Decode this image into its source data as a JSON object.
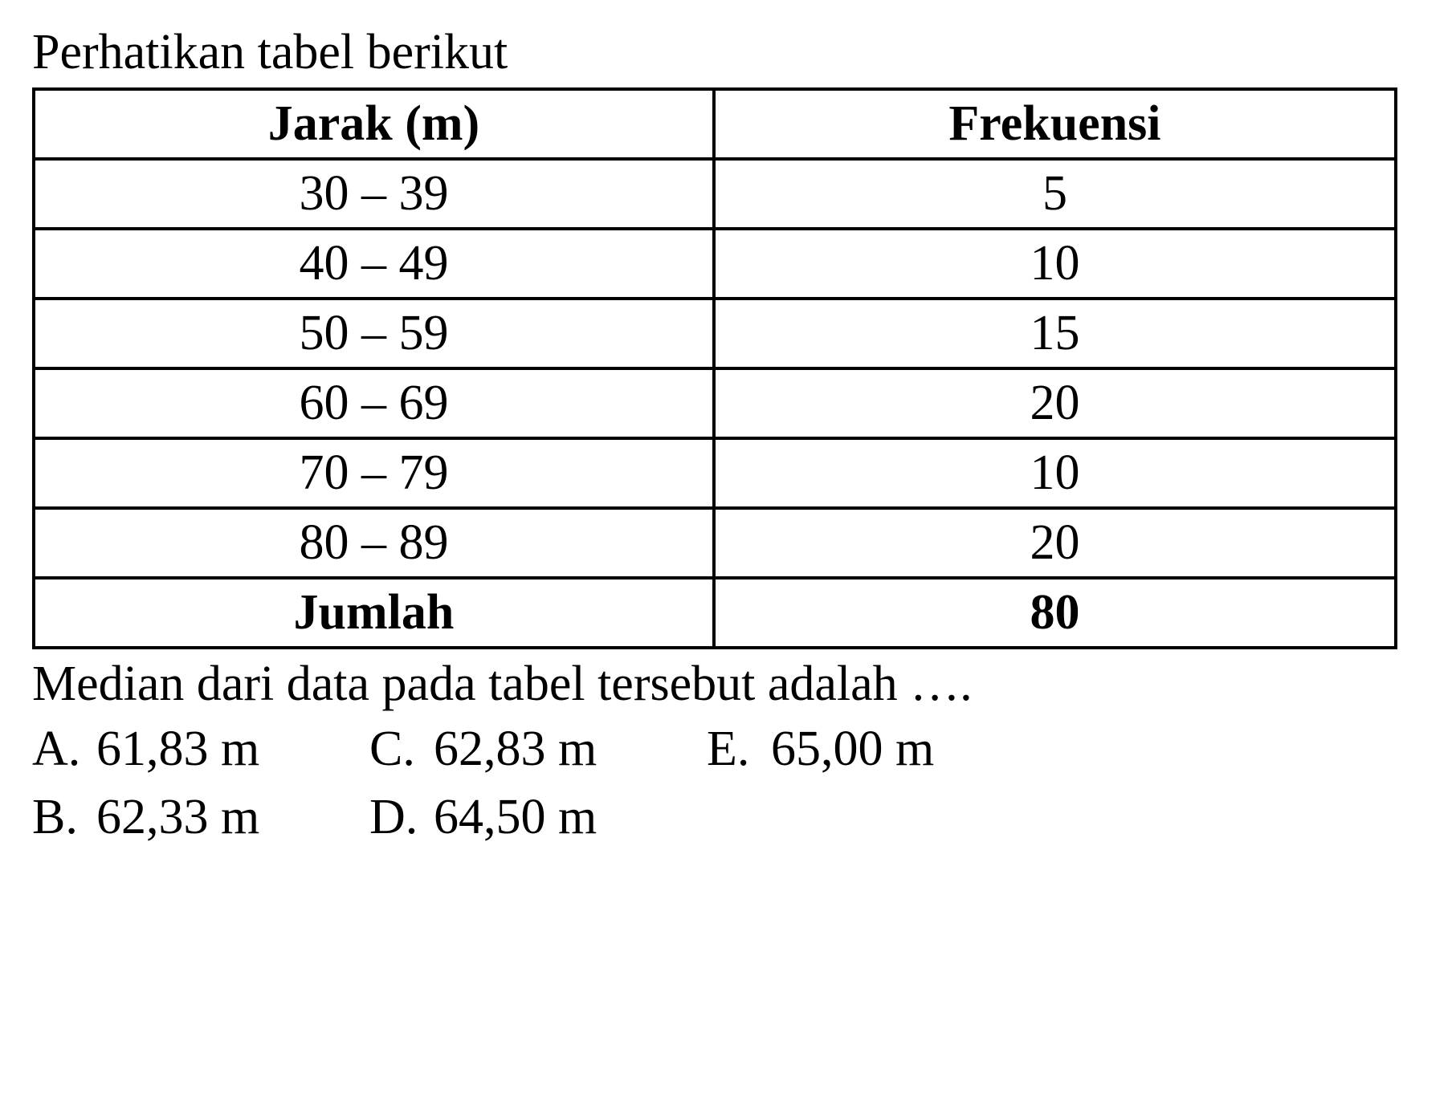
{
  "intro": "Perhatikan tabel berikut",
  "table": {
    "headers": {
      "col1": "Jarak (m)",
      "col2": "Frekuensi"
    },
    "rows": [
      {
        "range": "30 – 39",
        "freq": "5"
      },
      {
        "range": "40 – 49",
        "freq": "10"
      },
      {
        "range": "50 – 59",
        "freq": "15"
      },
      {
        "range": "60 – 69",
        "freq": "20"
      },
      {
        "range": "70 – 79",
        "freq": "10"
      },
      {
        "range": "80 – 89",
        "freq": "20"
      }
    ],
    "total": {
      "label": "Jumlah",
      "value": "80"
    },
    "border_color": "#000000",
    "text_color": "#000000",
    "background_color": "#ffffff",
    "font_size": 62,
    "col_widths": [
      "50%",
      "50%"
    ]
  },
  "question": "Median dari data pada tabel tersebut adalah ….",
  "options": {
    "row1": [
      {
        "letter": "A.",
        "value": "61,83 m"
      },
      {
        "letter": "C.",
        "value": "62,83 m"
      },
      {
        "letter": "E.",
        "value": "65,00 m"
      }
    ],
    "row2": [
      {
        "letter": "B.",
        "value": "62,33 m"
      },
      {
        "letter": "D.",
        "value": "64,50 m"
      }
    ]
  },
  "styling": {
    "font_family": "Times New Roman",
    "body_font_size": 62,
    "text_color": "#000000",
    "background_color": "#ffffff",
    "table_border_width": 4
  }
}
